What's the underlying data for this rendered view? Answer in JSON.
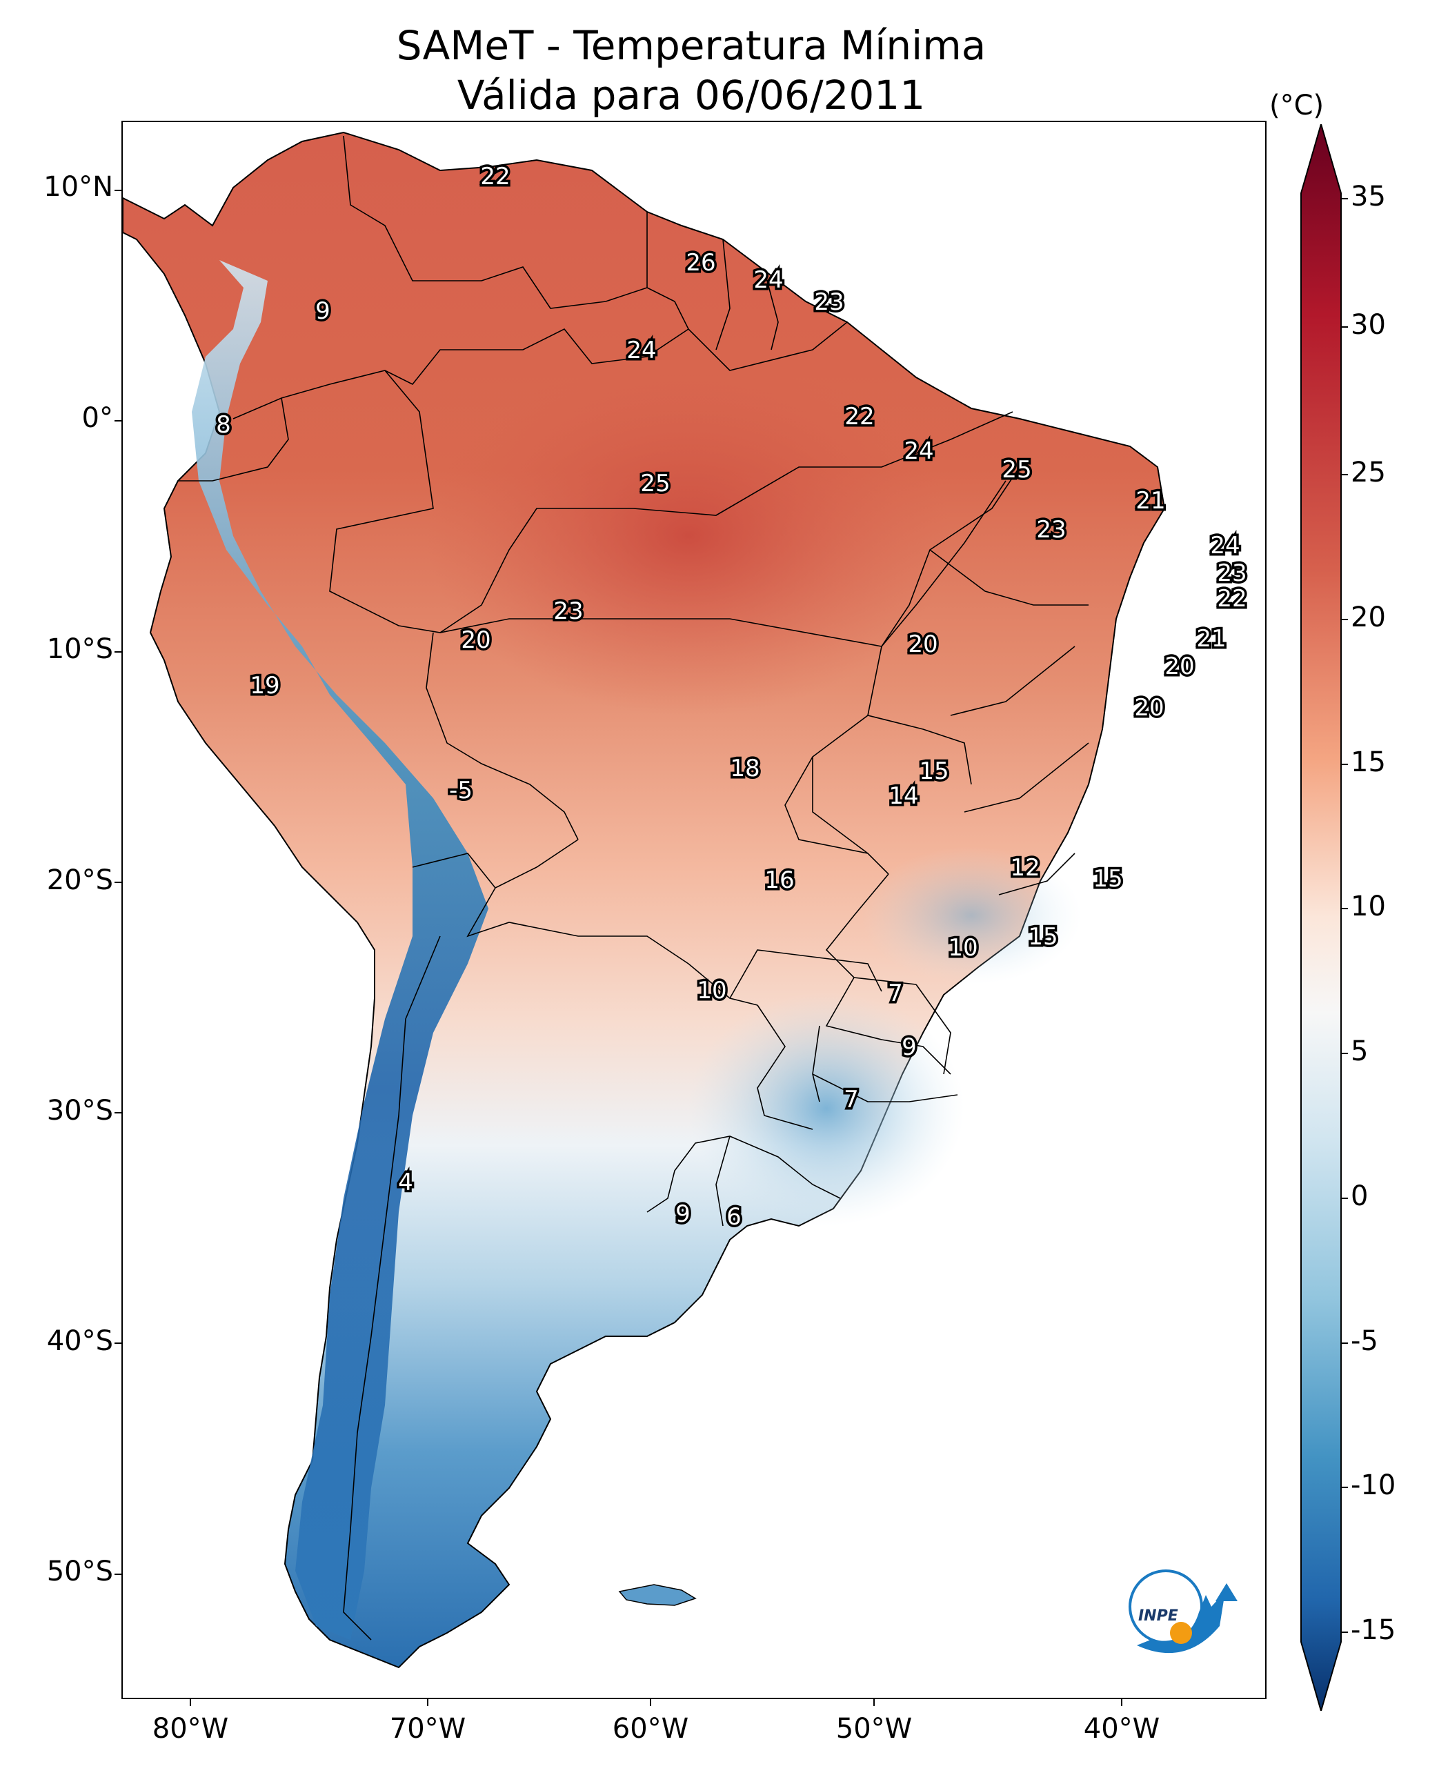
{
  "title": {
    "line1": "SAMeT - Temperatura Mínima",
    "line2": "Válida para 06/06/2011"
  },
  "map": {
    "lat_labels": [
      "10°N",
      "0°",
      "10°S",
      "20°S",
      "30°S",
      "40°S",
      "50°S"
    ],
    "lon_labels": [
      "80°W",
      "70°W",
      "60°W",
      "50°W",
      "40°W"
    ],
    "station_values": [
      "22",
      "26",
      "24",
      "23",
      "9",
      "24",
      "8",
      "22",
      "24",
      "25",
      "25",
      "23",
      "21",
      "24",
      "23",
      "22",
      "21",
      "20",
      "20",
      "23",
      "20",
      "20",
      "19",
      "18",
      "15",
      "14",
      "-5",
      "12",
      "15",
      "16",
      "10",
      "15",
      "10",
      "7",
      "9",
      "7",
      "4",
      "9",
      "6"
    ],
    "logo_text": "INPE"
  },
  "colorbar": {
    "unit": "(°C)",
    "ticks": [
      "35",
      "30",
      "25",
      "20",
      "15",
      "10",
      "5",
      "0",
      "-5",
      "-10",
      "-15"
    ],
    "range": [
      -15,
      35
    ],
    "colors": {
      "min": "#08306b",
      "cold": "#2166ac",
      "cool": "#92c5de",
      "neutral": "#f7f7f7",
      "mild": "#f4a582",
      "warm": "#d6604d",
      "hot": "#b2182b",
      "max": "#67001f"
    }
  }
}
